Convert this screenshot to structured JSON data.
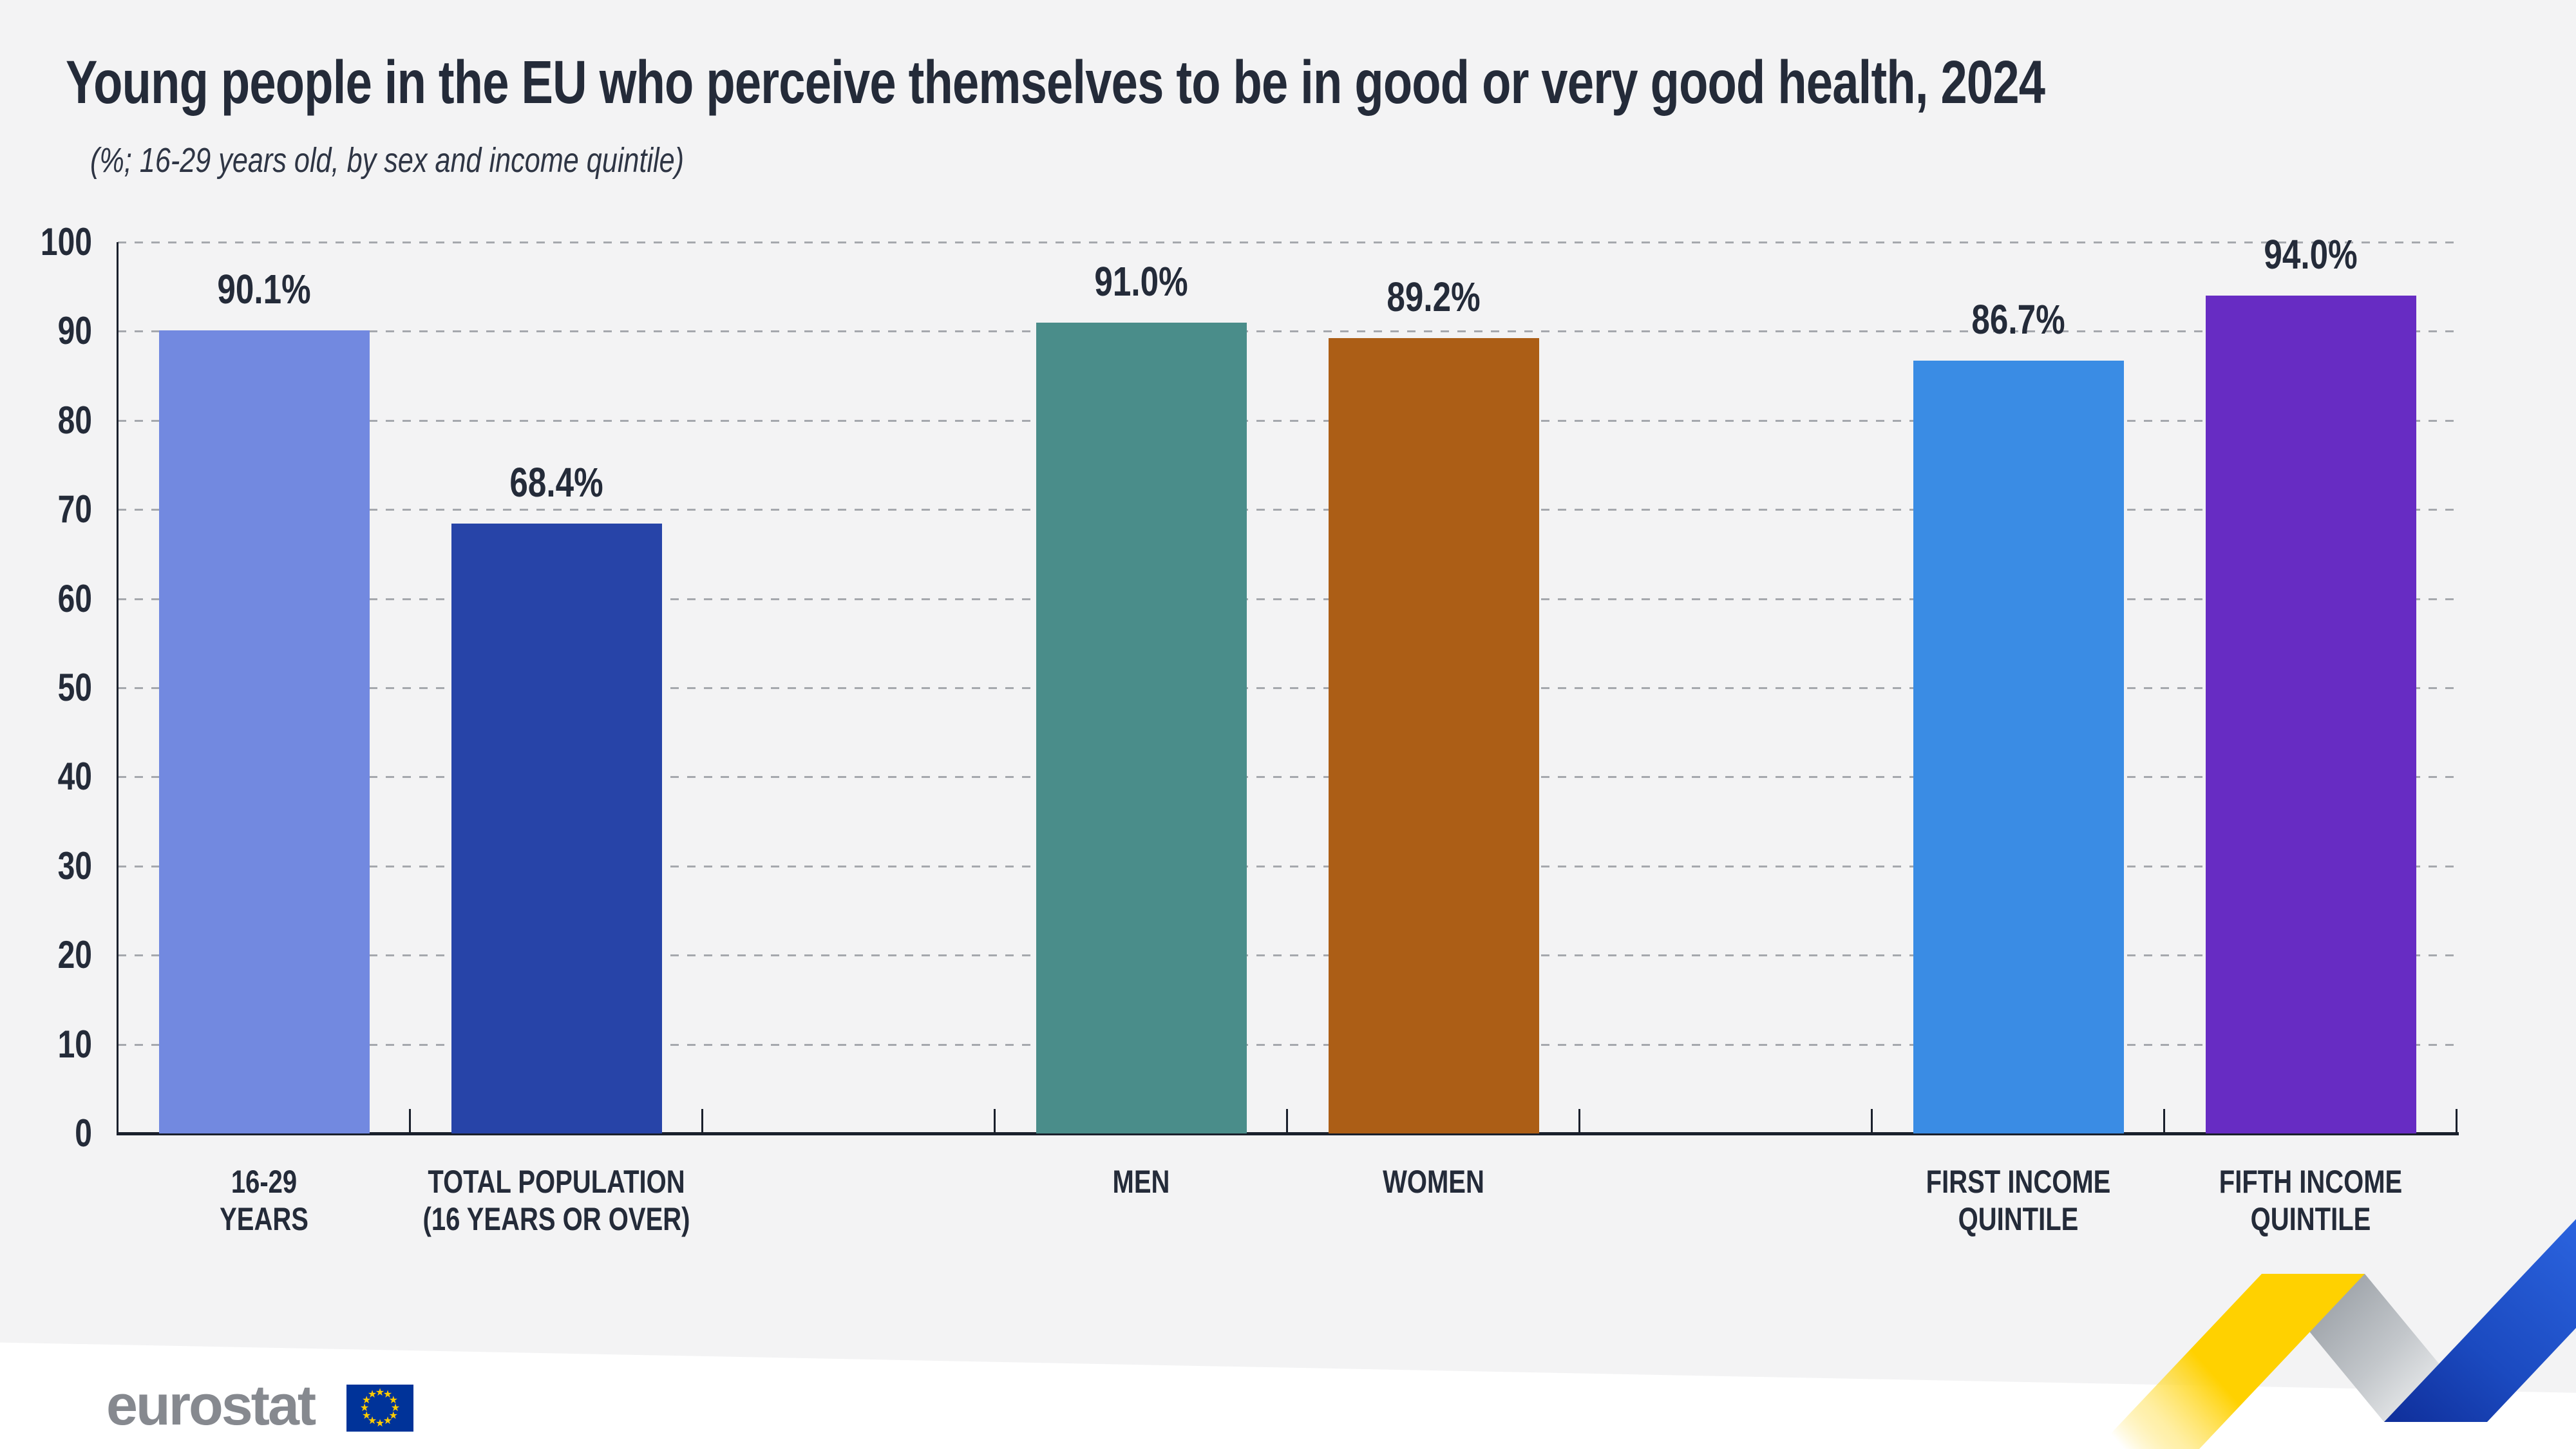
{
  "header": {
    "title": "Young people in the EU who perceive themselves to be in good or very good health, 2024",
    "subtitle": "(%; 16-29 years old, by sex and income quintile)"
  },
  "footer": {
    "logo_text": "eurostat"
  },
  "colors": {
    "panel_background": "#f3f3f4",
    "page_background": "#ffffff",
    "text_dark": "#242b39",
    "axis": "#1a202c",
    "gridline": "#a5a8ad",
    "logo_gray": "#86898f",
    "flag_blue": "#003399",
    "flag_stars": "#ffcc00",
    "ribbon_yellow": "#ffd100",
    "ribbon_gray": "#9aa0a6",
    "ribbon_blue": "#2257cf"
  },
  "chart_data": {
    "type": "bar",
    "title": "Young people in the EU who perceive themselves to be in good or very good health, 2024",
    "subtitle": "(%; 16-29 years old, by sex and income quintile)",
    "unit": "%",
    "xlabel": "",
    "ylabel": "",
    "ylim": [
      0,
      100
    ],
    "yticks": [
      100,
      90,
      80,
      70,
      60,
      50,
      40,
      30,
      20,
      10,
      0
    ],
    "grid": "dashed horizontal gridlines at every 10, solid dark baseline, tick marks between category slots",
    "legend": "none",
    "categories": [
      "16-29 YEARS",
      "TOTAL POPULATION (16 YEARS OR OVER)",
      "MEN",
      "WOMEN",
      "FIRST INCOME QUINTILE",
      "FIFTH INCOME QUINTILE"
    ],
    "values": [
      90.1,
      68.4,
      91.0,
      89.2,
      86.7,
      94.0
    ],
    "items": [
      {
        "label_lines": [
          "16-29",
          "YEARS"
        ],
        "value": 90.1,
        "display": "90.1%",
        "color": "#7289e0",
        "slot": 0
      },
      {
        "label_lines": [
          "TOTAL POPULATION",
          "(16 YEARS OR OVER)"
        ],
        "value": 68.4,
        "display": "68.4%",
        "color": "#2744a8",
        "slot": 1
      },
      {
        "label_lines": [
          "MEN"
        ],
        "value": 91.0,
        "display": "91.0%",
        "color": "#4a8d8a",
        "slot": 3
      },
      {
        "label_lines": [
          "WOMEN"
        ],
        "value": 89.2,
        "display": "89.2%",
        "color": "#ac5e16",
        "slot": 4
      },
      {
        "label_lines": [
          "FIRST INCOME",
          "QUINTILE"
        ],
        "value": 86.7,
        "display": "86.7%",
        "color": "#3a8ce4",
        "slot": 6
      },
      {
        "label_lines": [
          "FIFTH INCOME",
          "QUINTILE"
        ],
        "value": 94.0,
        "display": "94.0%",
        "color": "#672cc3",
        "slot": 7
      }
    ]
  }
}
